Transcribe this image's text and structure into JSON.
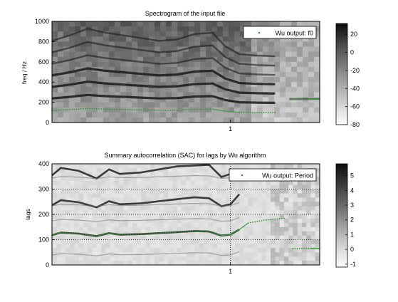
{
  "chart_data": [
    {
      "type": "heatmap",
      "title": "Spectrogram of the input file",
      "xlabel": "",
      "ylabel": "freq / Hz",
      "ylim": [
        0,
        1000
      ],
      "y_ticks": [
        "0",
        "200",
        "400",
        "600",
        "800",
        "1000"
      ],
      "x_ticks": [
        "1"
      ],
      "grid": false,
      "legend": {
        "placement": "top-right",
        "label": "Wu output: f0"
      },
      "colorbar": {
        "ticks": [
          "20",
          "0",
          "-20",
          "-40",
          "-60",
          "-80"
        ],
        "range": [
          -80,
          32
        ]
      },
      "series": [
        {
          "name": "Wu output: f0",
          "color": "#2e9a2e",
          "points": [
            [
              0.0,
              120
            ],
            [
              0.1,
              128
            ],
            [
              0.2,
              138
            ],
            [
              0.3,
              132
            ],
            [
              0.4,
              128
            ],
            [
              0.5,
              124
            ],
            [
              0.6,
              120
            ],
            [
              0.7,
              122
            ],
            [
              0.8,
              130
            ],
            [
              0.9,
              132
            ],
            [
              0.97,
              112
            ],
            [
              1.05,
              100
            ],
            [
              1.15,
              98
            ],
            [
              1.25,
              97
            ],
            [
              1.35,
              228
            ],
            [
              1.45,
              230
            ],
            [
              1.5,
              232
            ]
          ]
        }
      ]
    },
    {
      "type": "heatmap",
      "title": "Summary autocorrelation (SAC) for lags by Wu algorithm",
      "xlabel": "",
      "ylabel": "lags",
      "ylim": [
        0,
        400
      ],
      "y_ticks": [
        "0",
        "100",
        "200",
        "300",
        "400"
      ],
      "x_ticks": [
        "1"
      ],
      "grid": true,
      "legend": {
        "placement": "top-right",
        "label": "Wu output: Period"
      },
      "colorbar": {
        "ticks": [
          "5",
          "4",
          "3",
          "2",
          "1",
          "0",
          "-1"
        ],
        "range": [
          -1.2,
          5.8
        ]
      },
      "series": [
        {
          "name": "Wu output: Period",
          "color": "#2e9a2e",
          "points": [
            [
              0.0,
              118
            ],
            [
              0.05,
              128
            ],
            [
              0.15,
              124
            ],
            [
              0.25,
              114
            ],
            [
              0.32,
              126
            ],
            [
              0.38,
              120
            ],
            [
              0.5,
              122
            ],
            [
              0.6,
              126
            ],
            [
              0.7,
              130
            ],
            [
              0.8,
              134
            ],
            [
              0.88,
              132
            ],
            [
              0.95,
              116
            ],
            [
              1.0,
              120
            ],
            [
              1.05,
              140
            ],
            [
              1.1,
              166
            ],
            [
              1.2,
              178
            ],
            [
              1.3,
              184
            ],
            [
              1.35,
              64
            ],
            [
              1.45,
              66
            ],
            [
              1.5,
              64
            ]
          ]
        }
      ]
    }
  ]
}
